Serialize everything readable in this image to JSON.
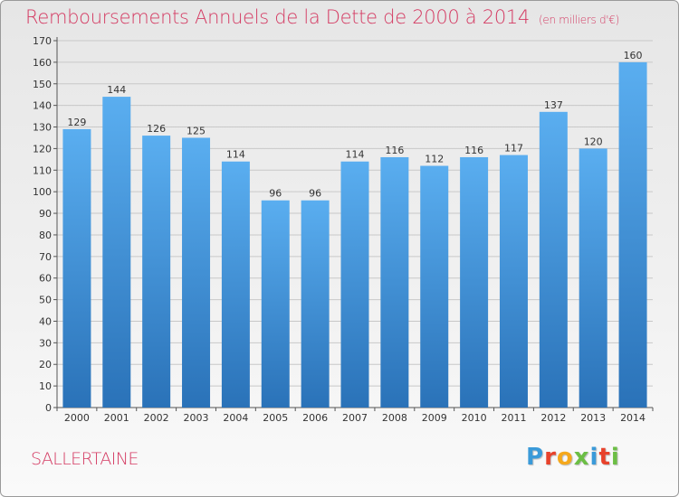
{
  "header": {
    "title": "Remboursements Annuels de la Dette de 2000 à 2014",
    "unit": "(en milliers d'€)"
  },
  "footer": {
    "city": "SALLERTAINE",
    "logo_letters": [
      "P",
      "r",
      "o",
      "x",
      "i",
      "t",
      "i"
    ],
    "logo_colors": [
      "#3a9ad9",
      "#e8422b",
      "#f5a81c",
      "#6cbe45",
      "#3a9ad9",
      "#e8422b",
      "#6cbe45"
    ]
  },
  "colors": {
    "bar_light": "#5aaef0",
    "bar_dark": "#2a72b8",
    "grid": "#c8c8c8",
    "title": "#d43a62"
  },
  "chart_data": {
    "type": "bar",
    "title": "Remboursements Annuels de la Dette de 2000 à 2014",
    "subtitle": "(en milliers d'€)",
    "xlabel": "",
    "ylabel": "",
    "categories": [
      "2000",
      "2001",
      "2002",
      "2003",
      "2004",
      "2005",
      "2006",
      "2007",
      "2008",
      "2009",
      "2010",
      "2011",
      "2012",
      "2013",
      "2014"
    ],
    "values": [
      129,
      144,
      126,
      125,
      114,
      96,
      96,
      114,
      116,
      112,
      116,
      117,
      137,
      120,
      160
    ],
    "ylim": [
      0,
      170
    ],
    "yticks": [
      0,
      10,
      20,
      30,
      40,
      50,
      60,
      70,
      80,
      90,
      100,
      110,
      120,
      130,
      140,
      150,
      160,
      170
    ],
    "grid": true,
    "legend": "none"
  }
}
